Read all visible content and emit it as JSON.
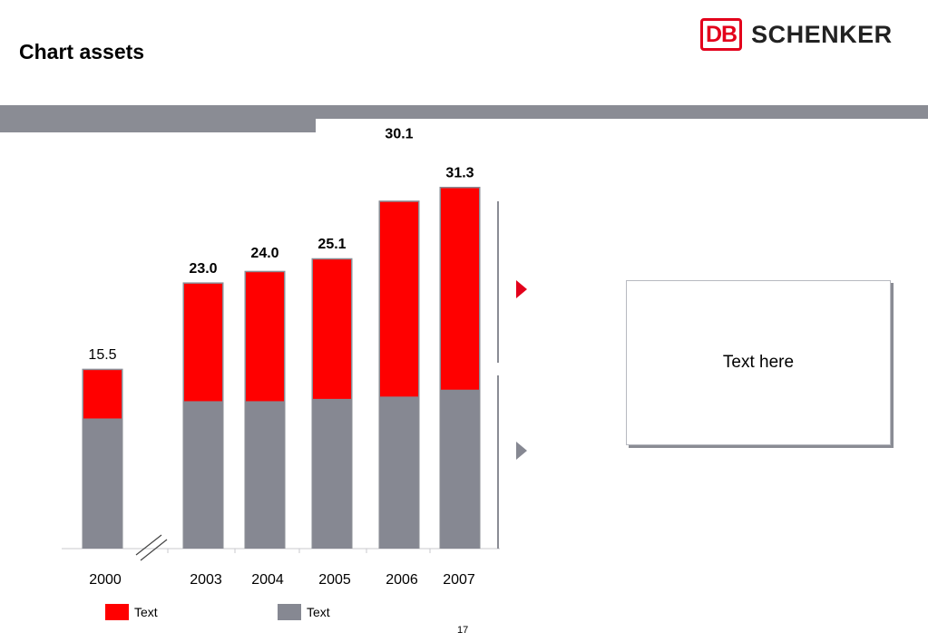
{
  "header": {
    "title": "Chart assets"
  },
  "logo": {
    "mark": "DB",
    "name": "SCHENKER",
    "color": "#e3001b"
  },
  "colors": {
    "red": "#ff0000",
    "grey": "#868892",
    "band": "#8a8c94"
  },
  "chart_data": {
    "type": "bar",
    "stacked": true,
    "categories": [
      "2000",
      "2003",
      "2004",
      "2005",
      "2006",
      "2007"
    ],
    "totals": [
      "15.5",
      "23.0",
      "24.0",
      "25.1",
      "30.1",
      "31.3"
    ],
    "series": [
      {
        "color": "#868892",
        "values": [
          11.3,
          12.8,
          12.8,
          13.0,
          13.2,
          13.8
        ]
      },
      {
        "color": "#ff0000",
        "values": [
          4.2,
          10.2,
          11.2,
          12.1,
          16.9,
          17.5
        ]
      }
    ],
    "axis_break_after": "2000",
    "ylim": [
      0,
      31.3
    ]
  },
  "legend": [
    {
      "label": "Text",
      "color": "#ff0000"
    },
    {
      "label": "Text",
      "color": "#868892"
    }
  ],
  "textbox": {
    "text": "Text here"
  },
  "arrows": [
    {
      "color": "#e3001b"
    },
    {
      "color": "#868892"
    }
  ],
  "page": {
    "number": "17"
  }
}
